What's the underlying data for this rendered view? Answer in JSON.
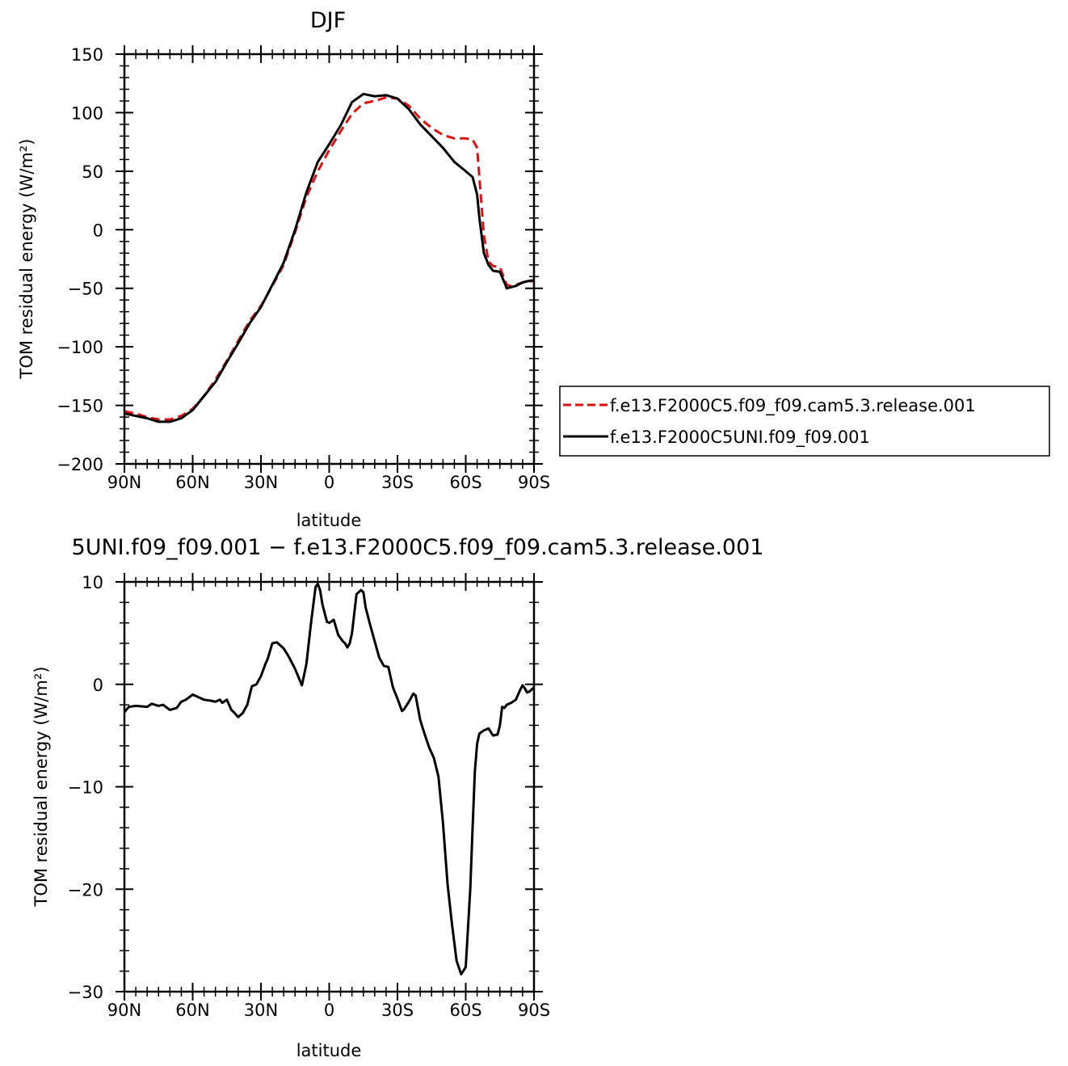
{
  "chart_data": [
    {
      "type": "line",
      "title": "DJF",
      "xlabel": "latitude",
      "ylabel": "TOM residual energy (W/m²)",
      "xlim": [
        90,
        -90
      ],
      "ylim": [
        -200,
        150
      ],
      "xticks": [
        90,
        60,
        30,
        0,
        -30,
        -60,
        -90
      ],
      "xtick_labels": [
        "90N",
        "60N",
        "30N",
        "0",
        "30S",
        "60S",
        "90S"
      ],
      "yticks": [
        -200,
        -150,
        -100,
        -50,
        0,
        50,
        100,
        150
      ],
      "ytick_labels": [
        "−200",
        "−150",
        "−100",
        "−50",
        "0",
        "50",
        "100",
        "150"
      ],
      "grid": false,
      "legend_position": "right",
      "series": [
        {
          "name": "f.e13.F2000C5.f09_f09.cam5.3.release.001",
          "color": "#e01010",
          "style": "dashed",
          "x": [
            90,
            85,
            80,
            75,
            70,
            65,
            60,
            55,
            50,
            45,
            40,
            35,
            30,
            25,
            20,
            15,
            10,
            5,
            0,
            -5,
            -10,
            -15,
            -20,
            -25,
            -30,
            -35,
            -40,
            -45,
            -50,
            -55,
            -60,
            -63,
            -65,
            -66,
            -68,
            -70,
            -72,
            -75,
            -77,
            -78,
            -80,
            -82,
            -85,
            -87,
            -90
          ],
          "y": [
            -155,
            -157,
            -160,
            -162,
            -162,
            -159,
            -153,
            -142,
            -128,
            -112,
            -95,
            -78,
            -65,
            -48,
            -30,
            -2,
            28,
            50,
            68,
            84,
            99,
            108,
            110,
            113,
            112,
            106,
            95,
            87,
            81,
            78,
            78,
            77,
            70,
            45,
            -5,
            -27,
            -31,
            -32,
            -42,
            -47,
            -48,
            -47,
            -45,
            -44,
            -44
          ]
        },
        {
          "name": "f.e13.F2000C5UNI.f09_f09.001",
          "color": "#000000",
          "style": "solid",
          "x": [
            90,
            85,
            80,
            75,
            70,
            65,
            60,
            55,
            50,
            45,
            40,
            35,
            30,
            25,
            20,
            15,
            10,
            5,
            0,
            -5,
            -10,
            -15,
            -20,
            -25,
            -30,
            -35,
            -40,
            -45,
            -50,
            -55,
            -60,
            -63,
            -65,
            -66,
            -68,
            -70,
            -72,
            -75,
            -77,
            -78,
            -80,
            -82,
            -85,
            -87,
            -90
          ],
          "y": [
            -157,
            -159,
            -161,
            -164,
            -164,
            -161,
            -154,
            -142,
            -130,
            -113,
            -97,
            -80,
            -66,
            -47,
            -28,
            0,
            32,
            58,
            73,
            89,
            109,
            116,
            114,
            115,
            112,
            103,
            90,
            80,
            70,
            58,
            50,
            45,
            30,
            10,
            -20,
            -30,
            -35,
            -36,
            -45,
            -50,
            -49,
            -48,
            -45,
            -44,
            -43
          ]
        }
      ]
    },
    {
      "type": "line",
      "title": "5UNI.f09_f09.001 − f.e13.F2000C5.f09_f09.cam5.3.release.001",
      "xlabel": "latitude",
      "ylabel": "TOM residual energy (W/m²)",
      "xlim": [
        90,
        -90
      ],
      "ylim": [
        -30,
        10
      ],
      "xticks": [
        90,
        60,
        30,
        0,
        -30,
        -60,
        -90
      ],
      "xtick_labels": [
        "90N",
        "60N",
        "30N",
        "0",
        "30S",
        "60S",
        "90S"
      ],
      "yticks": [
        -30,
        -20,
        -10,
        0,
        10
      ],
      "ytick_labels": [
        "−30",
        "−20",
        "−10",
        "0",
        "10"
      ],
      "grid": false,
      "series": [
        {
          "color": "#000000",
          "style": "solid",
          "x": [
            90,
            88,
            85,
            80,
            78,
            75,
            73,
            70,
            67,
            65,
            63,
            60,
            57,
            55,
            52,
            50,
            48,
            47,
            45,
            43,
            42,
            40,
            38,
            36,
            34,
            32,
            30,
            28,
            27,
            25,
            23,
            20,
            18,
            15,
            12,
            10,
            8,
            6,
            5,
            4,
            3,
            1,
            0,
            -2,
            -4,
            -6,
            -7,
            -8,
            -9,
            -10,
            -12,
            -14,
            -15,
            -16,
            -18,
            -20,
            -22,
            -24,
            -26,
            -28,
            -30,
            -32,
            -33,
            -35,
            -37,
            -38,
            -40,
            -42,
            -44,
            -46,
            -48,
            -50,
            -52,
            -54,
            -56,
            -58,
            -60,
            -62,
            -63,
            -64,
            -65,
            -66,
            -68,
            -70,
            -72,
            -74,
            -75,
            -76,
            -77,
            -78,
            -80,
            -82,
            -84,
            -85,
            -86,
            -87,
            -88,
            -89,
            -90
          ],
          "y": [
            -2.7,
            -2.2,
            -2.1,
            -2.2,
            -1.9,
            -2.1,
            -2.0,
            -2.5,
            -2.3,
            -1.7,
            -1.5,
            -1.0,
            -1.3,
            -1.5,
            -1.6,
            -1.7,
            -1.5,
            -1.8,
            -1.5,
            -2.5,
            -2.7,
            -3.2,
            -2.8,
            -2.0,
            -0.2,
            0.0,
            0.8,
            2.0,
            2.5,
            4.0,
            4.1,
            3.5,
            2.8,
            1.5,
            -0.1,
            2.0,
            6.0,
            9.5,
            9.8,
            9.2,
            7.8,
            6.1,
            6.0,
            6.3,
            4.8,
            4.2,
            4.0,
            3.6,
            4.0,
            5.0,
            8.8,
            9.2,
            9.0,
            7.5,
            5.8,
            4.2,
            2.6,
            1.8,
            1.7,
            -0.3,
            -1.4,
            -2.6,
            -2.4,
            -1.7,
            -0.9,
            -1.1,
            -3.5,
            -4.9,
            -6.2,
            -7.2,
            -9.0,
            -13.5,
            -19.5,
            -23.5,
            -27.0,
            -28.3,
            -27.6,
            -20.0,
            -14.0,
            -8.5,
            -5.8,
            -4.8,
            -4.5,
            -4.3,
            -5.0,
            -4.9,
            -4.0,
            -2.2,
            -2.3,
            -2.0,
            -1.8,
            -1.5,
            -0.5,
            -0.1,
            -0.4,
            -0.8,
            -0.7,
            -0.5,
            -0.3
          ]
        }
      ]
    }
  ]
}
